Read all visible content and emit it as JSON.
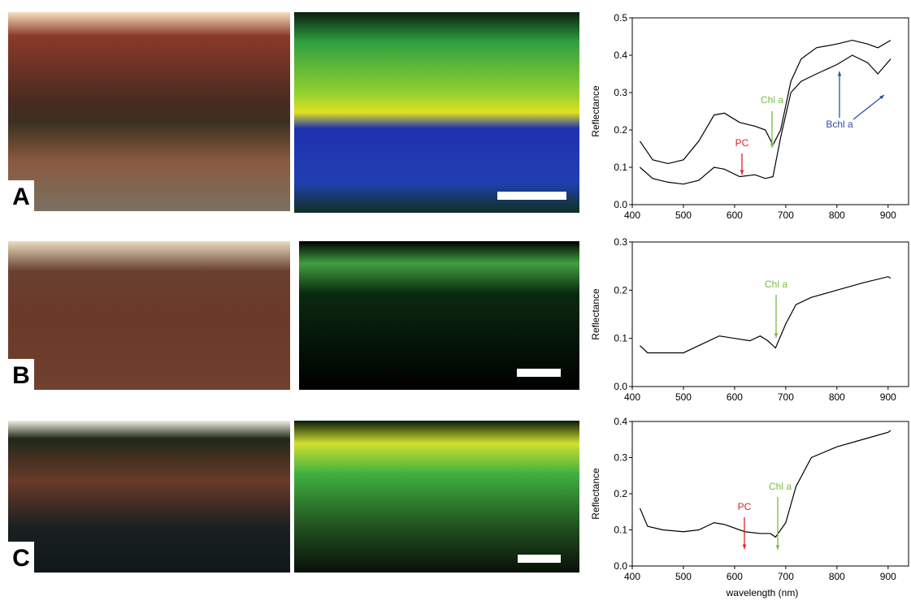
{
  "panels": [
    "A",
    "B",
    "C"
  ],
  "chart_data": [
    {
      "type": "line",
      "ylabel": "Reflectance",
      "x": [
        415,
        440,
        470,
        500,
        530,
        560,
        580,
        610,
        640,
        660,
        675,
        690,
        710,
        730,
        760,
        800,
        830,
        860,
        880,
        905
      ],
      "series": [
        {
          "color": "#000000",
          "values": [
            0.17,
            0.12,
            0.11,
            0.12,
            0.17,
            0.24,
            0.245,
            0.22,
            0.21,
            0.2,
            0.16,
            0.2,
            0.33,
            0.39,
            0.42,
            0.43,
            0.44,
            0.43,
            0.42,
            0.44
          ]
        },
        {
          "color": "#000000",
          "values": [
            0.1,
            0.07,
            0.06,
            0.055,
            0.065,
            0.1,
            0.095,
            0.075,
            0.08,
            0.07,
            0.075,
            0.18,
            0.3,
            0.33,
            0.35,
            0.375,
            0.4,
            0.38,
            0.35,
            0.39
          ]
        }
      ],
      "xlim": [
        400,
        940
      ],
      "xticks": [
        400,
        500,
        600,
        700,
        800,
        900
      ],
      "ylim": [
        0,
        0.5
      ],
      "yticks": [
        {
          "value": 0,
          "label": "0.0"
        },
        0.1,
        0.2,
        0.3,
        0.4,
        0.5
      ],
      "annotations": [
        {
          "text": "Chl a",
          "color": "#77bb44"
        },
        {
          "text": "PC",
          "color": "#e0202a"
        },
        {
          "text": "Bchl a",
          "color": "#3050a0"
        }
      ]
    },
    {
      "type": "line",
      "ylabel": "Reflectance",
      "x": [
        415,
        430,
        460,
        500,
        530,
        570,
        600,
        630,
        650,
        665,
        680,
        700,
        720,
        750,
        800,
        850,
        900,
        905
      ],
      "series": [
        {
          "color": "#000000",
          "values": [
            0.085,
            0.07,
            0.07,
            0.07,
            0.085,
            0.105,
            0.1,
            0.095,
            0.105,
            0.095,
            0.08,
            0.13,
            0.17,
            0.185,
            0.2,
            0.215,
            0.228,
            0.225
          ]
        }
      ],
      "xlim": [
        400,
        940
      ],
      "xticks": [
        400,
        500,
        600,
        700,
        800,
        900
      ],
      "ylim": [
        0,
        0.3
      ],
      "yticks": [
        {
          "value": 0,
          "label": "0.0"
        },
        0.1,
        0.2,
        0.3
      ],
      "annotations": [
        {
          "text": "Chl a",
          "color": "#77bb44"
        }
      ]
    },
    {
      "type": "line",
      "ylabel": "Reflectance",
      "xlabel": "wavelength (nm)",
      "x": [
        415,
        430,
        460,
        500,
        530,
        560,
        580,
        620,
        650,
        670,
        680,
        700,
        720,
        750,
        800,
        850,
        900,
        905
      ],
      "series": [
        {
          "color": "#000000",
          "values": [
            0.16,
            0.11,
            0.1,
            0.095,
            0.1,
            0.12,
            0.115,
            0.095,
            0.09,
            0.09,
            0.08,
            0.12,
            0.22,
            0.3,
            0.33,
            0.35,
            0.37,
            0.375
          ]
        }
      ],
      "xlim": [
        400,
        940
      ],
      "xticks": [
        400,
        500,
        600,
        700,
        800,
        900
      ],
      "ylim": [
        0,
        0.4
      ],
      "yticks": [
        {
          "value": 0,
          "label": "0.0"
        },
        0.1,
        0.2,
        0.3,
        0.4
      ],
      "annotations": [
        {
          "text": "PC",
          "color": "#e0202a"
        },
        {
          "text": "Chl a",
          "color": "#77bb44"
        }
      ]
    }
  ]
}
